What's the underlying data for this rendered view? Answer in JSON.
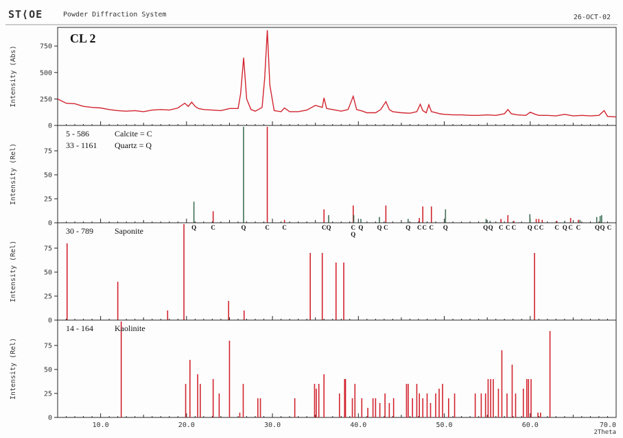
{
  "header": {
    "logo": "ST⟨OE",
    "app_title": "Powder Diffraction System",
    "date": "26-OCT-02"
  },
  "colors": {
    "red": "#d2232e",
    "green": "#3f6f55",
    "axis": "#222222",
    "ink": "#333333"
  },
  "chart_data": [
    {
      "type": "line",
      "title": "CL 2",
      "ylabel": "Intensity  (Abs)",
      "xlabel": "2Theta",
      "xlim": [
        5.0,
        70.0
      ],
      "ylim": [
        0,
        900
      ],
      "yticks": [
        0,
        250,
        500,
        750
      ],
      "xticks": [
        10.0,
        20.0,
        30.0,
        40.0,
        50.0,
        60.0,
        70.0
      ],
      "series": [
        {
          "x": [
            5.0,
            6.0,
            7.0,
            8.0,
            9.0,
            10.0,
            11.0,
            12.0,
            13.0,
            14.0,
            15.0,
            16.0,
            17.0,
            18.0,
            19.0,
            19.8,
            20.2,
            20.6,
            21.0,
            21.4,
            22.0,
            23.0,
            24.0,
            25.0,
            26.0,
            26.3,
            26.65,
            27.0,
            27.5,
            28.0,
            28.8,
            29.1,
            29.4,
            29.7,
            30.2,
            31.0,
            31.4,
            32.0,
            33.0,
            34.0,
            35.0,
            35.8,
            36.0,
            36.3,
            37.0,
            38.0,
            38.8,
            39.4,
            39.8,
            40.5,
            41.0,
            42.0,
            42.6,
            43.2,
            43.6,
            44.0,
            45.0,
            46.0,
            46.8,
            47.2,
            47.5,
            47.9,
            48.2,
            48.5,
            48.8,
            49.5,
            50.0,
            51.0,
            52.0,
            53.0,
            54.0,
            55.0,
            56.0,
            57.0,
            57.4,
            57.8,
            58.5,
            59.5,
            60.0,
            60.6,
            61.0,
            62.0,
            63.0,
            64.0,
            65.0,
            66.0,
            67.0,
            68.0,
            68.6,
            69.0,
            70.0
          ],
          "y": [
            250,
            210,
            205,
            180,
            170,
            165,
            150,
            140,
            135,
            140,
            130,
            145,
            150,
            145,
            165,
            210,
            180,
            220,
            180,
            160,
            150,
            145,
            140,
            160,
            160,
            300,
            640,
            250,
            150,
            135,
            170,
            450,
            900,
            380,
            140,
            130,
            165,
            130,
            130,
            145,
            190,
            170,
            260,
            160,
            150,
            135,
            150,
            275,
            150,
            135,
            120,
            120,
            150,
            225,
            150,
            130,
            120,
            115,
            130,
            200,
            140,
            120,
            195,
            130,
            125,
            110,
            105,
            100,
            100,
            95,
            95,
            100,
            95,
            110,
            150,
            110,
            100,
            95,
            125,
            105,
            95,
            95,
            90,
            105,
            90,
            95,
            90,
            95,
            140,
            85,
            80
          ]
        }
      ]
    },
    {
      "type": "bar",
      "ylabel": "Intensity  (Rel)",
      "xlim": [
        5.0,
        70.0
      ],
      "ylim": [
        0,
        100
      ],
      "yticks": [
        0,
        25,
        50,
        75
      ],
      "legend": [
        {
          "code": "5 - 586",
          "name": "Calcite = C"
        },
        {
          "code": "33 - 1161",
          "name": "Quartz = Q"
        }
      ],
      "series": [
        {
          "name": "Calcite",
          "color": "#d2232e",
          "x": [
            23.1,
            29.4,
            31.4,
            36.0,
            39.4,
            43.2,
            47.1,
            47.5,
            48.5,
            56.6,
            57.4,
            58.1,
            60.7,
            61.0,
            61.4,
            63.1,
            64.7,
            65.6
          ],
          "y": [
            12,
            100,
            3,
            14,
            18,
            18,
            5,
            17,
            17,
            4,
            8,
            2,
            4,
            4,
            3,
            2,
            5,
            3
          ]
        },
        {
          "name": "Quartz",
          "color": "#3f6f55",
          "x": [
            20.86,
            26.64,
            36.54,
            39.46,
            40.29,
            42.45,
            45.79,
            50.14,
            54.87,
            55.33,
            59.96,
            64.03,
            65.79,
            67.74,
            68.14,
            68.31
          ],
          "y": [
            22,
            100,
            8,
            8,
            4,
            6,
            4,
            14,
            4,
            2,
            9,
            2,
            3,
            6,
            7,
            8
          ]
        }
      ],
      "annotations": [
        {
          "x": 20.86,
          "text": "Q",
          "row": 0
        },
        {
          "x": 23.1,
          "text": "C",
          "row": 0
        },
        {
          "x": 26.64,
          "text": "Q",
          "row": 0
        },
        {
          "x": 29.4,
          "text": "C",
          "row": 0
        },
        {
          "x": 31.4,
          "text": "C",
          "row": 0
        },
        {
          "x": 36.0,
          "text": "C",
          "row": 0
        },
        {
          "x": 36.54,
          "text": "Q",
          "row": 0
        },
        {
          "x": 39.4,
          "text": "C",
          "row": 0
        },
        {
          "x": 39.4,
          "text": "Q",
          "row": 1
        },
        {
          "x": 40.29,
          "text": "Q",
          "row": 0
        },
        {
          "x": 42.45,
          "text": "Q",
          "row": 0
        },
        {
          "x": 43.2,
          "text": "C",
          "row": 0
        },
        {
          "x": 45.79,
          "text": "Q",
          "row": 0
        },
        {
          "x": 47.1,
          "text": "C",
          "row": 0
        },
        {
          "x": 47.7,
          "text": "C",
          "row": 0
        },
        {
          "x": 48.5,
          "text": "C",
          "row": 0
        },
        {
          "x": 50.14,
          "text": "Q",
          "row": 0
        },
        {
          "x": 54.8,
          "text": "Q",
          "row": 0
        },
        {
          "x": 55.4,
          "text": "Q",
          "row": 0
        },
        {
          "x": 56.6,
          "text": "C",
          "row": 0
        },
        {
          "x": 57.4,
          "text": "C",
          "row": 0
        },
        {
          "x": 58.1,
          "text": "C",
          "row": 0
        },
        {
          "x": 59.96,
          "text": "Q",
          "row": 0
        },
        {
          "x": 60.7,
          "text": "C",
          "row": 0
        },
        {
          "x": 61.3,
          "text": "C",
          "row": 0
        },
        {
          "x": 63.1,
          "text": "C",
          "row": 0
        },
        {
          "x": 64.03,
          "text": "Q",
          "row": 0
        },
        {
          "x": 64.7,
          "text": "C",
          "row": 0
        },
        {
          "x": 65.6,
          "text": "C",
          "row": 0
        },
        {
          "x": 67.8,
          "text": "Q",
          "row": 0
        },
        {
          "x": 68.4,
          "text": "Q",
          "row": 0
        },
        {
          "x": 69.2,
          "text": "C",
          "row": 0
        }
      ]
    },
    {
      "type": "bar",
      "ylabel": "Intensity  (Rel)",
      "xlim": [
        5.0,
        70.0
      ],
      "ylim": [
        0,
        100
      ],
      "yticks": [
        0,
        25,
        50,
        75
      ],
      "legend": [
        {
          "code": "30 - 789",
          "name": "Saponite"
        }
      ],
      "series": [
        {
          "name": "Saponite",
          "color": "#d2232e",
          "x": [
            6.1,
            12.0,
            17.8,
            19.7,
            24.9,
            26.7,
            34.4,
            35.8,
            37.4,
            38.3,
            60.5
          ],
          "y": [
            80,
            40,
            10,
            100,
            20,
            10,
            70,
            70,
            60,
            60,
            70
          ]
        }
      ]
    },
    {
      "type": "bar",
      "ylabel": "Intensity  (Rel)",
      "xlabel": "2Theta",
      "xlim": [
        5.0,
        70.0
      ],
      "ylim": [
        0,
        100
      ],
      "yticks": [
        0,
        25,
        50,
        75
      ],
      "xticks": [
        10.0,
        20.0,
        30.0,
        40.0,
        50.0,
        60.0,
        70.0
      ],
      "legend": [
        {
          "code": "14 - 164",
          "name": "Kaolinite"
        }
      ],
      "series": [
        {
          "name": "Kaolinite",
          "color": "#d2232e",
          "x": [
            12.4,
            19.9,
            20.4,
            21.3,
            21.6,
            23.1,
            23.8,
            25.0,
            26.2,
            26.6,
            28.3,
            28.6,
            32.6,
            34.9,
            35.1,
            35.4,
            36.0,
            37.8,
            38.4,
            38.5,
            39.3,
            39.6,
            40.4,
            41.1,
            41.7,
            42.0,
            42.5,
            43.1,
            43.6,
            44.1,
            45.6,
            45.8,
            46.3,
            46.8,
            47.1,
            47.5,
            48.0,
            48.4,
            49.0,
            49.4,
            49.8,
            50.5,
            51.2,
            53.6,
            54.3,
            54.8,
            55.1,
            55.4,
            55.7,
            56.3,
            56.7,
            57.3,
            57.9,
            58.3,
            59.2,
            59.6,
            59.8,
            60.1,
            60.9,
            61.2,
            62.3
          ],
          "y": [
            100,
            35,
            60,
            45,
            35,
            40,
            25,
            80,
            5,
            35,
            20,
            20,
            20,
            35,
            30,
            35,
            45,
            25,
            40,
            40,
            20,
            35,
            20,
            10,
            20,
            20,
            15,
            25,
            15,
            20,
            35,
            35,
            20,
            35,
            25,
            20,
            25,
            15,
            25,
            30,
            35,
            20,
            25,
            25,
            25,
            25,
            40,
            40,
            40,
            30,
            70,
            25,
            55,
            25,
            30,
            40,
            40,
            40,
            5,
            5,
            90
          ]
        }
      ]
    }
  ]
}
